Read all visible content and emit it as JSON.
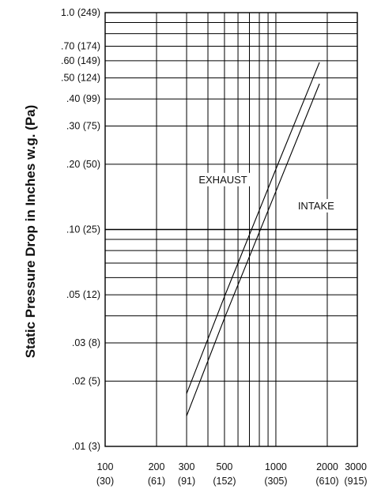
{
  "chart_data": {
    "type": "line",
    "x_scale": "log",
    "y_scale": "log",
    "xlim": [
      100,
      3000
    ],
    "ylim": [
      0.01,
      1.0
    ],
    "grid": true,
    "ylabel": "Static Pressure Drop in Inches w.g. (Pa)",
    "xlabel": "",
    "title": "",
    "x_ticks": [
      {
        "value": 100,
        "label": "100",
        "sublabel": "(30)"
      },
      {
        "value": 200,
        "label": "200",
        "sublabel": "(61)"
      },
      {
        "value": 300,
        "label": "300",
        "sublabel": "(91)"
      },
      {
        "value": 500,
        "label": "500",
        "sublabel": "(152)"
      },
      {
        "value": 1000,
        "label": "1000",
        "sublabel": "(305)"
      },
      {
        "value": 2000,
        "label": "2000",
        "sublabel": "(610)"
      },
      {
        "value": 3000,
        "label": "3000",
        "sublabel": "(915)"
      }
    ],
    "x_gridlines": [
      100,
      200,
      300,
      400,
      500,
      600,
      700,
      800,
      900,
      1000,
      2000,
      3000
    ],
    "y_ticks": [
      {
        "value": 1.0,
        "label": "1.0 (249)"
      },
      {
        "value": 0.7,
        "label": ".70 (174)"
      },
      {
        "value": 0.6,
        "label": ".60 (149)"
      },
      {
        "value": 0.5,
        "label": ".50 (124)"
      },
      {
        "value": 0.4,
        "label": ".40 (99)"
      },
      {
        "value": 0.3,
        "label": ".30 (75)"
      },
      {
        "value": 0.2,
        "label": ".20 (50)"
      },
      {
        "value": 0.1,
        "label": ".10 (25)"
      },
      {
        "value": 0.05,
        "label": ".05 (12)"
      },
      {
        "value": 0.03,
        "label": ".03 (8)"
      },
      {
        "value": 0.02,
        "label": ".02 (5)"
      },
      {
        "value": 0.01,
        "label": ".01 (3)"
      }
    ],
    "y_gridlines": [
      0.9,
      0.8,
      0.7,
      0.6,
      0.5,
      0.4,
      0.3,
      0.2,
      0.1,
      0.09,
      0.08,
      0.07,
      0.06,
      0.05,
      0.04,
      0.03,
      0.02
    ],
    "y_major_gridlines": [
      0.1
    ],
    "series": [
      {
        "name": "EXHAUST",
        "points": [
          [
            300,
            0.0175
          ],
          [
            500,
            0.049
          ],
          [
            1000,
            0.19
          ],
          [
            1800,
            0.59
          ]
        ]
      },
      {
        "name": "INTAKE",
        "points": [
          [
            300,
            0.0138
          ],
          [
            500,
            0.039
          ],
          [
            1000,
            0.15
          ],
          [
            1800,
            0.47
          ]
        ]
      }
    ],
    "annotations": [
      {
        "text": "EXHAUST",
        "x": 490,
        "y": 0.165
      },
      {
        "text": "INTAKE",
        "x": 1720,
        "y": 0.125
      }
    ]
  }
}
